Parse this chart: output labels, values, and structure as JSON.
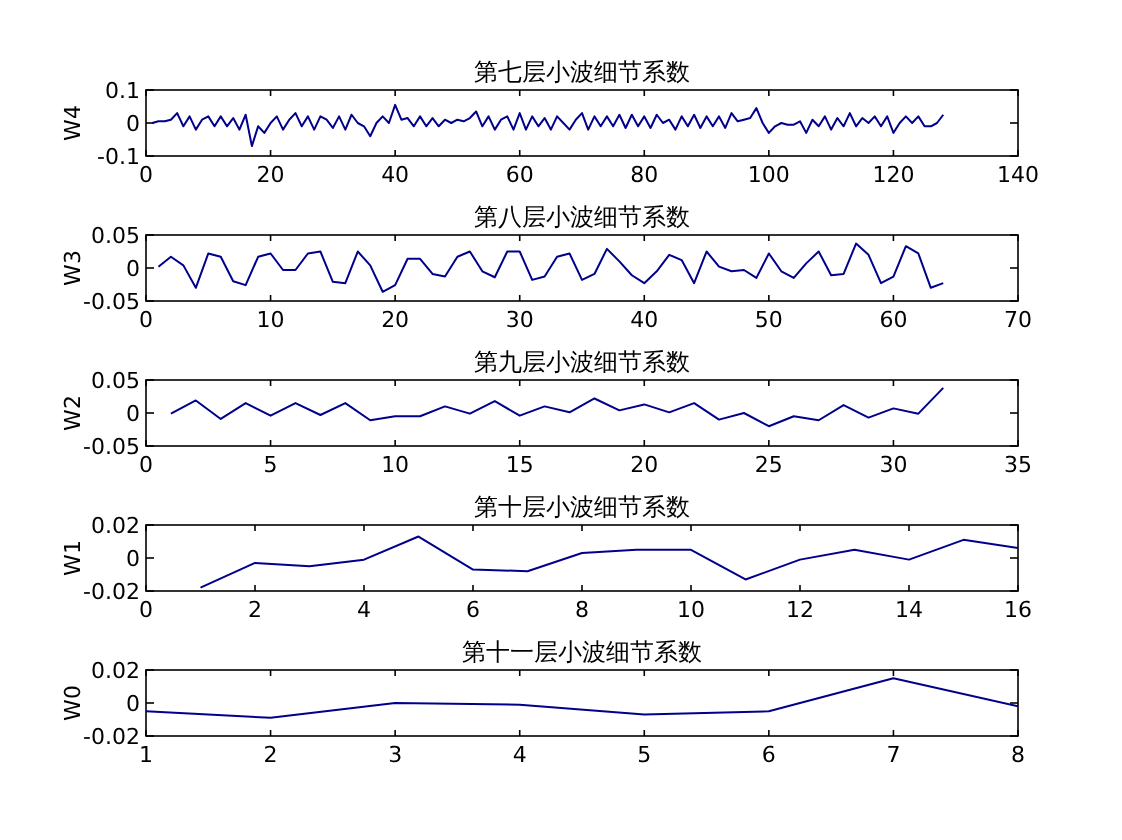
{
  "chart_data": [
    {
      "type": "line",
      "title": "第七层小波细节系数",
      "ylabel": "W4",
      "color": "#00008b",
      "xlim": [
        0,
        140
      ],
      "ylim": [
        -0.1,
        0.1
      ],
      "xticks": [
        0,
        20,
        40,
        60,
        80,
        100,
        120,
        140
      ],
      "yticks": [
        -0.1,
        0,
        0.1
      ],
      "x": [
        1,
        2,
        3,
        4,
        5,
        6,
        7,
        8,
        9,
        10,
        11,
        12,
        13,
        14,
        15,
        16,
        17,
        18,
        19,
        20,
        21,
        22,
        23,
        24,
        25,
        26,
        27,
        28,
        29,
        30,
        31,
        32,
        33,
        34,
        35,
        36,
        37,
        38,
        39,
        40,
        41,
        42,
        43,
        44,
        45,
        46,
        47,
        48,
        49,
        50,
        51,
        52,
        53,
        54,
        55,
        56,
        57,
        58,
        59,
        60,
        61,
        62,
        63,
        64,
        65,
        66,
        67,
        68,
        69,
        70,
        71,
        72,
        73,
        74,
        75,
        76,
        77,
        78,
        79,
        80,
        81,
        82,
        83,
        84,
        85,
        86,
        87,
        88,
        89,
        90,
        91,
        92,
        93,
        94,
        95,
        96,
        97,
        98,
        99,
        100,
        101,
        102,
        103,
        104,
        105,
        106,
        107,
        108,
        109,
        110,
        111,
        112,
        113,
        114,
        115,
        116,
        117,
        118,
        119,
        120,
        121,
        122,
        123,
        124,
        125,
        126,
        127,
        128
      ],
      "values": [
        0.0,
        0.005,
        0.005,
        0.01,
        0.03,
        -0.01,
        0.02,
        -0.02,
        0.01,
        0.02,
        -0.01,
        0.02,
        -0.01,
        0.015,
        -0.02,
        0.025,
        -0.07,
        -0.01,
        -0.03,
        0.0,
        0.02,
        -0.02,
        0.01,
        0.03,
        -0.01,
        0.02,
        -0.02,
        0.02,
        0.01,
        -0.015,
        0.02,
        -0.02,
        0.025,
        0.0,
        -0.01,
        -0.04,
        0.0,
        0.02,
        0.0,
        0.055,
        0.01,
        0.015,
        -0.01,
        0.02,
        -0.01,
        0.015,
        -0.01,
        0.01,
        0.0,
        0.01,
        0.005,
        0.015,
        0.035,
        -0.01,
        0.02,
        -0.02,
        0.01,
        0.02,
        -0.02,
        0.03,
        -0.02,
        0.02,
        -0.01,
        0.015,
        -0.02,
        0.02,
        0.0,
        -0.02,
        0.01,
        0.03,
        -0.02,
        0.02,
        -0.01,
        0.02,
        -0.01,
        0.025,
        -0.015,
        0.025,
        -0.01,
        0.02,
        -0.015,
        0.025,
        0.0,
        0.01,
        -0.02,
        0.02,
        -0.01,
        0.025,
        -0.015,
        0.02,
        -0.01,
        0.02,
        -0.015,
        0.03,
        0.005,
        0.01,
        0.015,
        0.045,
        0.0,
        -0.03,
        -0.01,
        0.0,
        -0.005,
        -0.005,
        0.005,
        -0.03,
        0.01,
        -0.01,
        0.02,
        -0.02,
        0.015,
        -0.01,
        0.03,
        -0.01,
        0.015,
        0.0,
        0.02,
        -0.01,
        0.02,
        -0.03,
        0.0,
        0.02,
        0.0,
        0.02,
        -0.01,
        -0.01,
        0.0,
        0.025
      ]
    },
    {
      "type": "line",
      "title": "第八层小波细节系数",
      "ylabel": "W3",
      "color": "#00008b",
      "xlim": [
        0,
        70
      ],
      "ylim": [
        -0.05,
        0.05
      ],
      "xticks": [
        0,
        10,
        20,
        30,
        40,
        50,
        60,
        70
      ],
      "yticks": [
        -0.05,
        0,
        0.05
      ],
      "x": [
        1,
        2,
        3,
        4,
        5,
        6,
        7,
        8,
        9,
        10,
        11,
        12,
        13,
        14,
        15,
        16,
        17,
        18,
        19,
        20,
        21,
        22,
        23,
        24,
        25,
        26,
        27,
        28,
        29,
        30,
        31,
        32,
        33,
        34,
        35,
        36,
        37,
        38,
        39,
        40,
        41,
        42,
        43,
        44,
        45,
        46,
        47,
        48,
        49,
        50,
        51,
        52,
        53,
        54,
        55,
        56,
        57,
        58,
        59,
        60,
        61,
        62,
        63,
        64
      ],
      "values": [
        0.002,
        0.017,
        0.004,
        -0.03,
        0.022,
        0.017,
        -0.02,
        -0.026,
        0.017,
        0.022,
        -0.003,
        -0.003,
        0.022,
        0.025,
        -0.021,
        -0.023,
        0.025,
        0.004,
        -0.036,
        -0.026,
        0.014,
        0.014,
        -0.009,
        -0.013,
        0.017,
        0.025,
        -0.005,
        -0.014,
        0.025,
        0.025,
        -0.018,
        -0.013,
        0.017,
        0.022,
        -0.018,
        -0.009,
        0.029,
        0.01,
        -0.011,
        -0.023,
        -0.005,
        0.02,
        0.012,
        -0.023,
        0.025,
        0.002,
        -0.005,
        -0.003,
        -0.015,
        0.022,
        -0.005,
        -0.015,
        0.007,
        0.025,
        -0.011,
        -0.009,
        0.037,
        0.02,
        -0.023,
        -0.013,
        0.033,
        0.022,
        -0.03,
        -0.023
      ]
    },
    {
      "type": "line",
      "title": "第九层小波细节系数",
      "ylabel": "W2",
      "color": "#00008b",
      "xlim": [
        0,
        35
      ],
      "ylim": [
        -0.05,
        0.05
      ],
      "xticks": [
        0,
        5,
        10,
        15,
        20,
        25,
        30,
        35
      ],
      "yticks": [
        -0.05,
        0,
        0.05
      ],
      "x": [
        1,
        2,
        3,
        4,
        5,
        6,
        7,
        8,
        9,
        10,
        11,
        12,
        13,
        14,
        15,
        16,
        17,
        18,
        19,
        20,
        21,
        22,
        23,
        24,
        25,
        26,
        27,
        28,
        29,
        30,
        31,
        32
      ],
      "values": [
        -0.001,
        0.019,
        -0.009,
        0.015,
        -0.004,
        0.015,
        -0.003,
        0.015,
        -0.011,
        -0.005,
        -0.005,
        0.01,
        -0.001,
        0.018,
        -0.004,
        0.01,
        0.001,
        0.022,
        0.004,
        0.013,
        0.001,
        0.015,
        -0.01,
        0.0,
        -0.02,
        -0.005,
        -0.011,
        0.012,
        -0.007,
        0.007,
        -0.001,
        0.038
      ]
    },
    {
      "type": "line",
      "title": "第十层小波细节系数",
      "ylabel": "W1",
      "color": "#00008b",
      "xlim": [
        0,
        16
      ],
      "ylim": [
        -0.02,
        0.02
      ],
      "xticks": [
        0,
        2,
        4,
        6,
        8,
        10,
        12,
        14,
        16
      ],
      "yticks": [
        -0.02,
        0,
        0.02
      ],
      "x": [
        1,
        2,
        3,
        4,
        5,
        6,
        7,
        8,
        9,
        10,
        11,
        12,
        13,
        14,
        15,
        16
      ],
      "values": [
        -0.018,
        -0.003,
        -0.005,
        -0.001,
        0.013,
        -0.007,
        -0.008,
        0.003,
        0.005,
        0.005,
        -0.013,
        -0.001,
        0.005,
        -0.001,
        0.011,
        0.006
      ]
    },
    {
      "type": "line",
      "title": "第十一层小波细节系数",
      "ylabel": "W0",
      "color": "#00008b",
      "xlim": [
        1,
        8
      ],
      "ylim": [
        -0.02,
        0.02
      ],
      "xticks": [
        1,
        2,
        3,
        4,
        5,
        6,
        7,
        8
      ],
      "yticks": [
        -0.02,
        0,
        0.02
      ],
      "x": [
        1,
        2,
        3,
        4,
        5,
        6,
        7,
        8
      ],
      "values": [
        -0.005,
        -0.009,
        0.0,
        -0.001,
        -0.007,
        -0.005,
        0.015,
        -0.002
      ]
    }
  ]
}
